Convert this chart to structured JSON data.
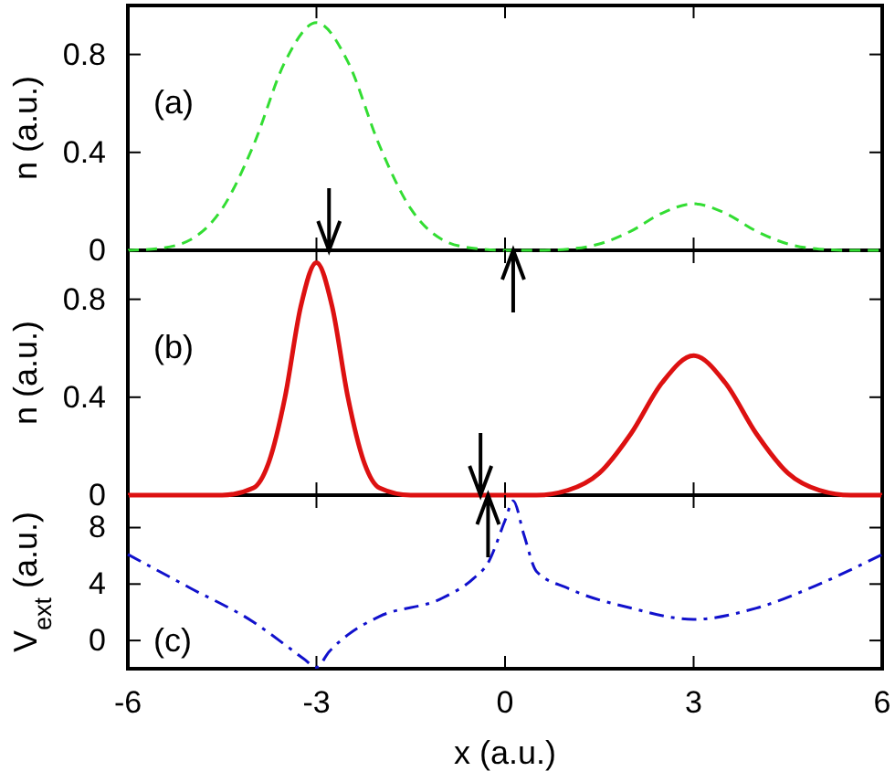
{
  "chart_data": [
    {
      "type": "line",
      "ylabel": "n (a.u.)",
      "annotations": [
        "(a)"
      ],
      "xlim": [
        -6,
        6
      ],
      "xticks": [
        -6,
        -3,
        0,
        3,
        6
      ],
      "ylim": [
        0,
        1
      ],
      "yticks": [
        0,
        0.4,
        0.8
      ],
      "tick_labels": "y",
      "line_style": "dashed",
      "x": [
        -6,
        -5.5,
        -5,
        -4.5,
        -4,
        -3.5,
        -3,
        -2.5,
        -2,
        -1.5,
        -1,
        -0.5,
        0,
        0.5,
        1,
        1.5,
        2,
        2.5,
        3,
        3.5,
        4,
        4.5,
        5,
        5.5,
        6
      ],
      "series": [
        {
          "color": "#33dd33",
          "values": [
            0,
            0.008,
            0.044,
            0.17,
            0.43,
            0.77,
            0.93,
            0.77,
            0.43,
            0.17,
            0.044,
            0.008,
            0,
            0,
            0.005,
            0.026,
            0.078,
            0.152,
            0.19,
            0.152,
            0.078,
            0.026,
            0.005,
            0,
            0
          ]
        }
      ]
    },
    {
      "type": "line",
      "ylabel": "n (a.u.)",
      "annotations": [
        "(b)"
      ],
      "xlim": [
        -6,
        6
      ],
      "xticks": [
        -6,
        -3,
        0,
        3,
        6
      ],
      "ylim": [
        0,
        1
      ],
      "yticks": [
        0,
        0.4,
        0.8
      ],
      "tick_labels": "y",
      "line_style": "solid",
      "x": [
        -6,
        -5,
        -4.5,
        -4,
        -3.75,
        -3.5,
        -3.25,
        -3,
        -2.75,
        -2.5,
        -2.25,
        -2,
        -1.5,
        -1,
        0,
        0.5,
        1,
        1.5,
        2,
        2.5,
        3,
        3.5,
        4,
        4.5,
        5,
        5.5,
        6
      ],
      "series": [
        {
          "color": "#dd1111",
          "values": [
            0,
            0,
            0,
            0.03,
            0.14,
            0.4,
            0.77,
            0.95,
            0.77,
            0.4,
            0.14,
            0.03,
            0,
            0,
            0,
            0,
            0.02,
            0.09,
            0.25,
            0.46,
            0.57,
            0.46,
            0.25,
            0.09,
            0.02,
            0,
            0
          ]
        }
      ]
    },
    {
      "type": "line",
      "xlabel": "x (a.u.)",
      "ylabel": "V$_{ext}$ (a.u.)",
      "annotations": [
        "(c)"
      ],
      "xlim": [
        -6,
        6
      ],
      "xticks": [
        -6,
        -3,
        0,
        3,
        6
      ],
      "ylim": [
        -2,
        10.3
      ],
      "yticks": [
        0,
        4,
        8
      ],
      "line_style": "dashdot",
      "x": [
        -6,
        -5,
        -4,
        -3.5,
        -3.2,
        -3,
        -2.8,
        -2.5,
        -2,
        -1,
        -0.5,
        -0.27,
        0,
        0.13,
        0.3,
        0.5,
        1,
        2,
        3,
        4,
        5,
        6
      ],
      "series": [
        {
          "color": "#1111cc",
          "values": [
            6.1,
            3.7,
            1.3,
            -0.3,
            -1.3,
            -1.9,
            -0.8,
            0.4,
            1.7,
            3.0,
            4.4,
            5.5,
            8.5,
            9.9,
            7.5,
            4.9,
            3.7,
            2.3,
            1.5,
            2.3,
            4.0,
            6.1
          ]
        }
      ]
    }
  ]
}
